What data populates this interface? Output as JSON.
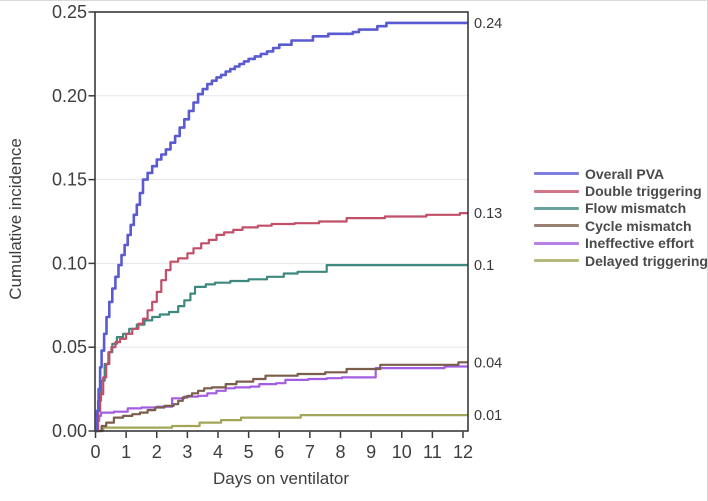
{
  "figure": {
    "background": "#ffffff",
    "frame_color": "#3a3a3a",
    "grid_color": "#e7e7e7",
    "text_color": "#3e3e3e"
  },
  "chart_data": {
    "type": "line",
    "subtype": "step-after",
    "title": "",
    "xlabel": "Days on ventilator",
    "ylabel": "Cumulative incidence",
    "xlim": [
      0,
      12
    ],
    "ylim": [
      0,
      0.25
    ],
    "grid": "horizontal",
    "legend_position": "right-outside",
    "x_ticks": [
      0,
      1,
      2,
      3,
      4,
      5,
      6,
      7,
      8,
      9,
      10,
      11,
      12
    ],
    "y_ticks": [
      {
        "label": "0.00",
        "value": 0.0
      },
      {
        "label": "0.05",
        "value": 0.05
      },
      {
        "label": "0.10",
        "value": 0.1
      },
      {
        "label": "0.15",
        "value": 0.15
      },
      {
        "label": "0.20",
        "value": 0.2
      },
      {
        "label": "0.25",
        "value": 0.25
      }
    ],
    "series": [
      {
        "name": "Overall PVA",
        "color": "#5a5ad2",
        "end_label": "0.24",
        "points": [
          [
            0,
            0
          ],
          [
            0.05,
            0.012
          ],
          [
            0.1,
            0.025
          ],
          [
            0.15,
            0.038
          ],
          [
            0.2,
            0.048
          ],
          [
            0.28,
            0.058
          ],
          [
            0.36,
            0.068
          ],
          [
            0.45,
            0.077
          ],
          [
            0.55,
            0.085
          ],
          [
            0.65,
            0.092
          ],
          [
            0.75,
            0.099
          ],
          [
            0.85,
            0.105
          ],
          [
            0.95,
            0.111
          ],
          [
            1.05,
            0.117
          ],
          [
            1.15,
            0.123
          ],
          [
            1.25,
            0.129
          ],
          [
            1.35,
            0.135
          ],
          [
            1.45,
            0.142
          ],
          [
            1.55,
            0.15
          ],
          [
            1.7,
            0.154
          ],
          [
            1.85,
            0.158
          ],
          [
            2.0,
            0.162
          ],
          [
            2.15,
            0.165
          ],
          [
            2.3,
            0.168
          ],
          [
            2.45,
            0.172
          ],
          [
            2.6,
            0.176
          ],
          [
            2.75,
            0.181
          ],
          [
            2.9,
            0.186
          ],
          [
            3.05,
            0.191
          ],
          [
            3.2,
            0.196
          ],
          [
            3.35,
            0.201
          ],
          [
            3.5,
            0.204
          ],
          [
            3.65,
            0.207
          ],
          [
            3.8,
            0.209
          ],
          [
            3.95,
            0.211
          ],
          [
            4.1,
            0.2125
          ],
          [
            4.25,
            0.2145
          ],
          [
            4.4,
            0.216
          ],
          [
            4.55,
            0.2175
          ],
          [
            4.7,
            0.219
          ],
          [
            4.85,
            0.2205
          ],
          [
            5.0,
            0.222
          ],
          [
            5.2,
            0.2235
          ],
          [
            5.4,
            0.225
          ],
          [
            5.6,
            0.2265
          ],
          [
            5.8,
            0.2285
          ],
          [
            6.0,
            0.2305
          ],
          [
            6.4,
            0.233
          ],
          [
            7.1,
            0.2355
          ],
          [
            7.6,
            0.237
          ],
          [
            8.4,
            0.238
          ],
          [
            8.6,
            0.2395
          ],
          [
            9.2,
            0.2415
          ],
          [
            9.5,
            0.2435
          ],
          [
            12,
            0.2435
          ]
        ]
      },
      {
        "name": "Double triggering",
        "color": "#c14f68",
        "end_label": "0.13",
        "points": [
          [
            0,
            0
          ],
          [
            0.08,
            0.012
          ],
          [
            0.15,
            0.022
          ],
          [
            0.25,
            0.032
          ],
          [
            0.35,
            0.04
          ],
          [
            0.45,
            0.047
          ],
          [
            0.52,
            0.05
          ],
          [
            0.65,
            0.053
          ],
          [
            0.8,
            0.055
          ],
          [
            1.0,
            0.058
          ],
          [
            1.2,
            0.061
          ],
          [
            1.4,
            0.064
          ],
          [
            1.55,
            0.067
          ],
          [
            1.7,
            0.072
          ],
          [
            1.85,
            0.077
          ],
          [
            2.0,
            0.083
          ],
          [
            2.15,
            0.09
          ],
          [
            2.3,
            0.096
          ],
          [
            2.45,
            0.101
          ],
          [
            2.7,
            0.103
          ],
          [
            3.0,
            0.106
          ],
          [
            3.2,
            0.109
          ],
          [
            3.45,
            0.112
          ],
          [
            3.7,
            0.114
          ],
          [
            3.95,
            0.117
          ],
          [
            4.2,
            0.1185
          ],
          [
            4.5,
            0.12
          ],
          [
            4.8,
            0.1215
          ],
          [
            5.3,
            0.1225
          ],
          [
            5.75,
            0.1235
          ],
          [
            6.5,
            0.124
          ],
          [
            7.3,
            0.125
          ],
          [
            8.2,
            0.127
          ],
          [
            9.45,
            0.128
          ],
          [
            10.8,
            0.129
          ],
          [
            11.9,
            0.13
          ],
          [
            12,
            0.13
          ]
        ]
      },
      {
        "name": "Flow mismatch",
        "color": "#3f887d",
        "end_label": "0.1",
        "points": [
          [
            0,
            0
          ],
          [
            0.08,
            0.018
          ],
          [
            0.18,
            0.03
          ],
          [
            0.3,
            0.04
          ],
          [
            0.42,
            0.047
          ],
          [
            0.55,
            0.052
          ],
          [
            0.7,
            0.056
          ],
          [
            0.9,
            0.058
          ],
          [
            1.1,
            0.061
          ],
          [
            1.35,
            0.0635
          ],
          [
            1.6,
            0.066
          ],
          [
            1.85,
            0.068
          ],
          [
            2.1,
            0.0695
          ],
          [
            2.4,
            0.071
          ],
          [
            2.7,
            0.0745
          ],
          [
            2.9,
            0.078
          ],
          [
            3.1,
            0.082
          ],
          [
            3.25,
            0.086
          ],
          [
            3.6,
            0.0875
          ],
          [
            3.9,
            0.0885
          ],
          [
            4.4,
            0.0895
          ],
          [
            5.0,
            0.0905
          ],
          [
            5.6,
            0.092
          ],
          [
            6.15,
            0.094
          ],
          [
            6.6,
            0.095
          ],
          [
            7.55,
            0.099
          ],
          [
            12,
            0.099
          ]
        ]
      },
      {
        "name": "Cycle mismatch",
        "color": "#7b5d4b",
        "end_label": "0.04",
        "points": [
          [
            0,
            0
          ],
          [
            0.2,
            0.003
          ],
          [
            0.35,
            0.005
          ],
          [
            0.6,
            0.008
          ],
          [
            0.9,
            0.009
          ],
          [
            1.2,
            0.01
          ],
          [
            1.45,
            0.011
          ],
          [
            1.7,
            0.0125
          ],
          [
            1.95,
            0.014
          ],
          [
            2.25,
            0.015
          ],
          [
            2.55,
            0.016
          ],
          [
            2.7,
            0.018
          ],
          [
            2.85,
            0.02
          ],
          [
            3.0,
            0.021
          ],
          [
            3.15,
            0.0225
          ],
          [
            3.35,
            0.024
          ],
          [
            3.55,
            0.0255
          ],
          [
            3.8,
            0.026
          ],
          [
            4.25,
            0.028
          ],
          [
            4.6,
            0.0295
          ],
          [
            5.15,
            0.031
          ],
          [
            5.55,
            0.033
          ],
          [
            6.6,
            0.034
          ],
          [
            7.5,
            0.035
          ],
          [
            8.2,
            0.037
          ],
          [
            9.3,
            0.0395
          ],
          [
            11.85,
            0.041
          ],
          [
            12,
            0.041
          ]
        ]
      },
      {
        "name": "Ineffective effort",
        "color": "#a35de2",
        "end_label": "",
        "points": [
          [
            0,
            0
          ],
          [
            0.07,
            0.006
          ],
          [
            0.12,
            0.009
          ],
          [
            0.18,
            0.011
          ],
          [
            0.6,
            0.0115
          ],
          [
            1.05,
            0.0135
          ],
          [
            1.5,
            0.014
          ],
          [
            2.0,
            0.0145
          ],
          [
            2.5,
            0.0195
          ],
          [
            2.9,
            0.0205
          ],
          [
            3.35,
            0.021
          ],
          [
            3.65,
            0.0225
          ],
          [
            3.95,
            0.024
          ],
          [
            4.25,
            0.0255
          ],
          [
            4.55,
            0.026
          ],
          [
            5.05,
            0.0265
          ],
          [
            5.35,
            0.028
          ],
          [
            5.9,
            0.0285
          ],
          [
            6.2,
            0.0305
          ],
          [
            6.95,
            0.031
          ],
          [
            7.55,
            0.0315
          ],
          [
            8.05,
            0.032
          ],
          [
            9.15,
            0.0375
          ],
          [
            11.4,
            0.0385
          ],
          [
            12,
            0.0385
          ]
        ]
      },
      {
        "name": "Delayed triggering",
        "color": "#a2a557",
        "end_label": "0.01",
        "points": [
          [
            0,
            0
          ],
          [
            0.25,
            0.002
          ],
          [
            2.5,
            0.003
          ],
          [
            3.4,
            0.005
          ],
          [
            4.1,
            0.0065
          ],
          [
            4.75,
            0.008
          ],
          [
            6.7,
            0.0095
          ],
          [
            12,
            0.0095
          ]
        ]
      }
    ]
  }
}
